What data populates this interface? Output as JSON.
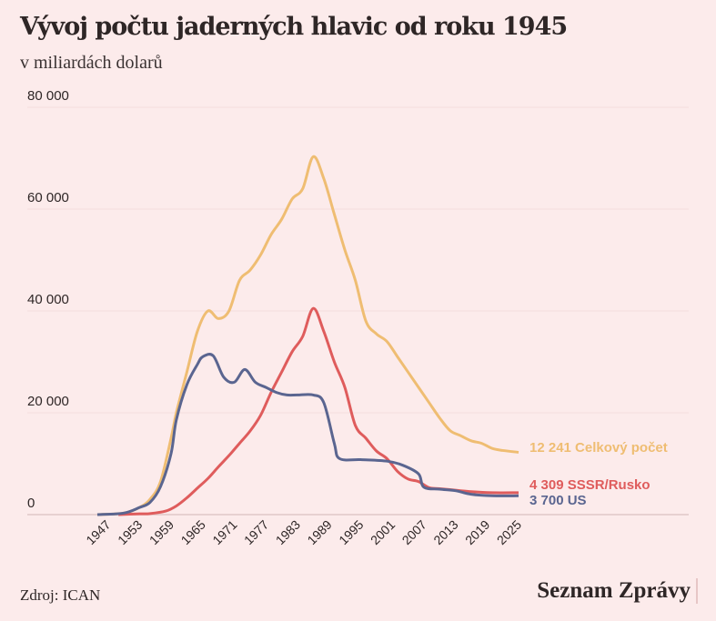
{
  "title": "Vývoj počtu jaderných hlavic od roku 1945",
  "subtitle": "v miliardách dolarů",
  "source": "Zdroj: ICAN",
  "logo": "Seznam Zprávy",
  "chart_data": {
    "type": "line",
    "title": "Vývoj počtu jaderných hlavic od roku 1945",
    "ylim": [
      0,
      80000
    ],
    "xlim": [
      1945,
      2025
    ],
    "yticks": [
      0,
      20000,
      40000,
      60000,
      80000
    ],
    "ytick_labels": [
      "0",
      "20 000",
      "40 000",
      "60 000",
      "80 000"
    ],
    "xtick_labels": [
      "1947",
      "1953",
      "1959",
      "1965",
      "1971",
      "1977",
      "1983",
      "1989",
      "1995",
      "2001",
      "2007",
      "2013",
      "2019",
      "2025"
    ],
    "grid": true,
    "series": [
      {
        "name": "Celkový počet",
        "end_label": "12 241 Celkový počet",
        "color": "#efbd72",
        "points": [
          [
            1945,
            0
          ],
          [
            1950,
            300
          ],
          [
            1953,
            1400
          ],
          [
            1955,
            3000
          ],
          [
            1957,
            6500
          ],
          [
            1959,
            15000
          ],
          [
            1960,
            20000
          ],
          [
            1962,
            28000
          ],
          [
            1964,
            36000
          ],
          [
            1966,
            40000
          ],
          [
            1968,
            38500
          ],
          [
            1970,
            40000
          ],
          [
            1972,
            46000
          ],
          [
            1974,
            48000
          ],
          [
            1976,
            51000
          ],
          [
            1978,
            55000
          ],
          [
            1980,
            58000
          ],
          [
            1982,
            62000
          ],
          [
            1984,
            64000
          ],
          [
            1986,
            70300
          ],
          [
            1988,
            66000
          ],
          [
            1990,
            59000
          ],
          [
            1992,
            52000
          ],
          [
            1994,
            46000
          ],
          [
            1996,
            38000
          ],
          [
            1998,
            35500
          ],
          [
            2000,
            34000
          ],
          [
            2002,
            31000
          ],
          [
            2004,
            28000
          ],
          [
            2006,
            25000
          ],
          [
            2008,
            22000
          ],
          [
            2010,
            19000
          ],
          [
            2012,
            16500
          ],
          [
            2014,
            15500
          ],
          [
            2016,
            14500
          ],
          [
            2018,
            14000
          ],
          [
            2020,
            13000
          ],
          [
            2022,
            12600
          ],
          [
            2025,
            12241
          ]
        ]
      },
      {
        "name": "SSSR/Rusko",
        "end_label": "4 309 SSSR/Rusko",
        "color": "#df5c5c",
        "points": [
          [
            1949,
            0
          ],
          [
            1953,
            150
          ],
          [
            1955,
            200
          ],
          [
            1958,
            700
          ],
          [
            1960,
            1700
          ],
          [
            1962,
            3300
          ],
          [
            1964,
            5200
          ],
          [
            1966,
            7100
          ],
          [
            1968,
            9400
          ],
          [
            1970,
            11600
          ],
          [
            1972,
            14000
          ],
          [
            1974,
            16400
          ],
          [
            1976,
            19500
          ],
          [
            1978,
            24000
          ],
          [
            1980,
            28000
          ],
          [
            1982,
            32000
          ],
          [
            1984,
            35000
          ],
          [
            1986,
            40500
          ],
          [
            1988,
            36000
          ],
          [
            1990,
            30000
          ],
          [
            1992,
            25000
          ],
          [
            1994,
            17500
          ],
          [
            1996,
            15000
          ],
          [
            1998,
            12500
          ],
          [
            2000,
            11000
          ],
          [
            2002,
            8500
          ],
          [
            2004,
            7000
          ],
          [
            2006,
            6500
          ],
          [
            2008,
            5300
          ],
          [
            2010,
            5100
          ],
          [
            2013,
            4800
          ],
          [
            2016,
            4500
          ],
          [
            2020,
            4300
          ],
          [
            2025,
            4309
          ]
        ]
      },
      {
        "name": "US",
        "end_label": "3 700 US",
        "color": "#5a6590",
        "points": [
          [
            1945,
            0
          ],
          [
            1950,
            300
          ],
          [
            1953,
            1400
          ],
          [
            1955,
            2400
          ],
          [
            1957,
            5500
          ],
          [
            1959,
            12000
          ],
          [
            1960,
            18600
          ],
          [
            1962,
            25500
          ],
          [
            1964,
            29500
          ],
          [
            1965,
            31000
          ],
          [
            1967,
            31200
          ],
          [
            1969,
            27000
          ],
          [
            1971,
            26000
          ],
          [
            1973,
            28500
          ],
          [
            1975,
            26000
          ],
          [
            1977,
            25000
          ],
          [
            1979,
            24000
          ],
          [
            1981,
            23500
          ],
          [
            1983,
            23500
          ],
          [
            1986,
            23500
          ],
          [
            1988,
            22000
          ],
          [
            1990,
            14000
          ],
          [
            1991,
            11000
          ],
          [
            1995,
            10800
          ],
          [
            2000,
            10500
          ],
          [
            2003,
            9700
          ],
          [
            2006,
            8000
          ],
          [
            2007,
            5400
          ],
          [
            2010,
            5000
          ],
          [
            2013,
            4700
          ],
          [
            2016,
            4000
          ],
          [
            2020,
            3700
          ],
          [
            2025,
            3700
          ]
        ]
      }
    ]
  }
}
